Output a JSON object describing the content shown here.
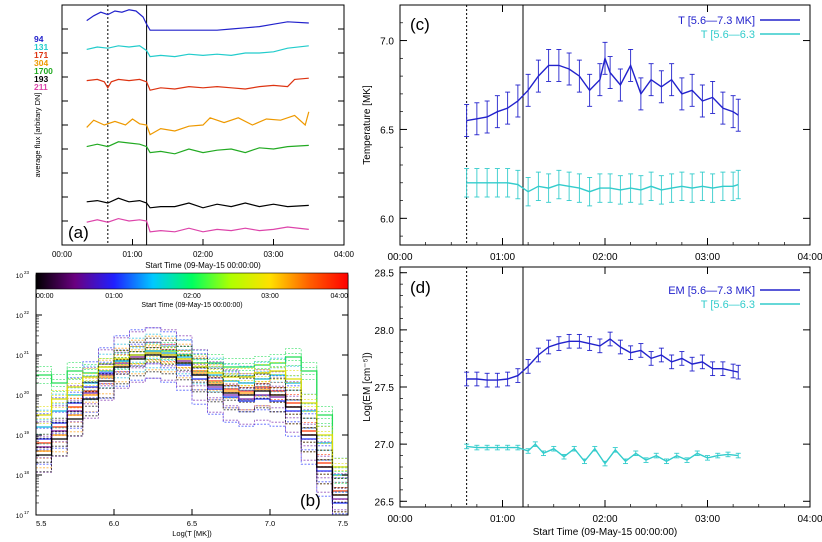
{
  "chart_data": [
    {
      "id": "a",
      "type": "line",
      "panel_label": "(a)",
      "xlabel": "Start Time (09-May-15 00:00:00)",
      "ylabel": "average flux [arbitary DN]",
      "xticks": [
        "00:00",
        "01:00",
        "02:00",
        "03:00",
        "04:00"
      ],
      "xlim": [
        0,
        4
      ],
      "ylim": [
        0,
        10
      ],
      "vlines": [
        {
          "x": 0.65,
          "style": "dotted"
        },
        {
          "x": 1.2,
          "style": "solid"
        }
      ],
      "legend": [
        {
          "label": "94",
          "color": "#2222cc"
        },
        {
          "label": "131",
          "color": "#22cccc"
        },
        {
          "label": "171",
          "color": "#dd3311"
        },
        {
          "label": "304",
          "color": "#ee9900"
        },
        {
          "label": "1700",
          "color": "#22aa22"
        },
        {
          "label": "193",
          "color": "#000000"
        },
        {
          "label": "211",
          "color": "#dd44aa"
        }
      ],
      "series": [
        {
          "name": "94",
          "color": "#2222cc",
          "x": [
            0.35,
            0.45,
            0.55,
            0.65,
            0.75,
            0.85,
            0.95,
            1.05,
            1.15,
            1.2,
            1.25,
            1.4,
            1.6,
            1.8,
            2.0,
            2.2,
            2.4,
            2.6,
            2.8,
            3.0,
            3.2,
            3.5
          ],
          "values": [
            9.35,
            9.55,
            9.7,
            9.6,
            9.75,
            9.7,
            9.8,
            9.75,
            9.5,
            9.2,
            8.95,
            8.95,
            8.95,
            8.95,
            8.95,
            8.95,
            9.0,
            9.05,
            9.1,
            9.2,
            9.3,
            9.25
          ]
        },
        {
          "name": "131",
          "color": "#22cccc",
          "x": [
            0.35,
            0.5,
            0.65,
            0.8,
            0.95,
            1.1,
            1.2,
            1.25,
            1.4,
            1.6,
            1.8,
            2.0,
            2.2,
            2.4,
            2.6,
            2.8,
            3.0,
            3.2,
            3.5
          ],
          "values": [
            8.15,
            8.25,
            8.2,
            8.3,
            8.25,
            8.3,
            8.1,
            7.85,
            7.9,
            7.85,
            7.95,
            7.9,
            7.95,
            7.9,
            8.0,
            8.0,
            8.05,
            8.2,
            8.3
          ]
        },
        {
          "name": "171",
          "color": "#dd3311",
          "x": [
            0.35,
            0.5,
            0.6,
            0.65,
            0.7,
            0.8,
            0.95,
            1.1,
            1.2,
            1.25,
            1.4,
            1.6,
            1.8,
            2.0,
            2.2,
            2.4,
            2.6,
            2.8,
            3.0,
            3.2,
            3.3,
            3.5
          ],
          "values": [
            6.85,
            6.9,
            6.8,
            6.55,
            6.8,
            6.9,
            6.85,
            6.9,
            6.8,
            6.45,
            6.55,
            6.5,
            6.6,
            6.55,
            6.6,
            6.55,
            6.5,
            6.6,
            6.65,
            6.6,
            6.9,
            6.95
          ]
        },
        {
          "name": "304",
          "color": "#ee9900",
          "x": [
            0.35,
            0.45,
            0.6,
            0.75,
            0.9,
            1.0,
            1.1,
            1.2,
            1.25,
            1.4,
            1.6,
            1.8,
            2.0,
            2.1,
            2.3,
            2.5,
            2.7,
            2.9,
            3.1,
            3.3,
            3.45,
            3.5
          ],
          "values": [
            4.9,
            5.2,
            5.0,
            5.15,
            5.0,
            5.25,
            5.05,
            5.0,
            4.6,
            4.85,
            4.75,
            4.95,
            5.0,
            5.3,
            5.1,
            5.3,
            5.0,
            5.25,
            5.2,
            5.4,
            5.0,
            5.55
          ]
        },
        {
          "name": "1700",
          "color": "#22aa22",
          "x": [
            0.35,
            0.5,
            0.65,
            0.8,
            0.95,
            1.1,
            1.2,
            1.25,
            1.4,
            1.6,
            1.8,
            2.0,
            2.2,
            2.4,
            2.6,
            2.8,
            3.0,
            3.2,
            3.5
          ],
          "values": [
            4.1,
            4.2,
            4.1,
            4.3,
            4.25,
            4.2,
            4.1,
            3.85,
            3.9,
            3.8,
            4.0,
            3.85,
            3.95,
            4.0,
            3.85,
            4.05,
            4.0,
            4.1,
            4.15
          ]
        },
        {
          "name": "193",
          "color": "#000000",
          "x": [
            0.35,
            0.5,
            0.65,
            0.8,
            0.95,
            1.1,
            1.2,
            1.25,
            1.4,
            1.6,
            1.8,
            2.0,
            2.2,
            2.4,
            2.6,
            2.8,
            3.0,
            3.2,
            3.5
          ],
          "values": [
            1.8,
            1.85,
            1.75,
            1.95,
            1.8,
            1.85,
            1.75,
            1.55,
            1.6,
            1.6,
            1.75,
            1.55,
            1.7,
            1.6,
            1.75,
            1.6,
            1.7,
            1.6,
            1.65
          ]
        },
        {
          "name": "211",
          "color": "#dd44aa",
          "x": [
            0.35,
            0.5,
            0.65,
            0.8,
            0.95,
            1.1,
            1.2,
            1.25,
            1.4,
            1.6,
            1.8,
            2.0,
            2.2,
            2.4,
            2.6,
            2.8,
            3.0,
            3.2,
            3.5
          ],
          "values": [
            0.95,
            1.05,
            0.95,
            1.1,
            1.0,
            1.05,
            1.0,
            0.55,
            0.6,
            0.55,
            0.7,
            0.55,
            0.65,
            0.6,
            0.7,
            0.6,
            0.65,
            0.75,
            0.65
          ]
        }
      ]
    },
    {
      "id": "b",
      "type": "line",
      "panel_label": "(b)",
      "xlabel": "Log(T [MK])",
      "xticks": [
        "5.5",
        "6.0",
        "6.5",
        "7.0",
        "7.5"
      ],
      "xlim": [
        5.5,
        7.5
      ],
      "ylim_exp": [
        17,
        23
      ],
      "ytick_labels": [
        "10",
        "10",
        "10",
        "10",
        "10",
        "10",
        "10"
      ],
      "ytick_exponents": [
        "17",
        "18",
        "19",
        "20",
        "21",
        "22",
        "23"
      ],
      "colorbar": {
        "ticks": [
          "00:00",
          "01:00",
          "02:00",
          "03:00",
          "04:00"
        ],
        "label": "Start Time (09-May-15 00:00:00)",
        "colors": [
          "#000000",
          "#6a0080",
          "#2020ff",
          "#00c8ff",
          "#00ff60",
          "#b0ff00",
          "#ffe000",
          "#ff6000",
          "#ff0000"
        ]
      },
      "bins": [
        5.55,
        5.65,
        5.75,
        5.85,
        5.95,
        6.05,
        6.15,
        6.25,
        6.35,
        6.45,
        6.55,
        6.65,
        6.75,
        6.85,
        6.95,
        7.05,
        7.15,
        7.25,
        7.35,
        7.45
      ],
      "series": [
        {
          "name": "red curve",
          "color": "#ff3300",
          "values": [
            18.8,
            19.2,
            19.7,
            20.1,
            20.5,
            20.8,
            21.0,
            21.1,
            21.05,
            20.9,
            20.6,
            20.35,
            20.15,
            20.1,
            20.2,
            20.1,
            19.8,
            19.1,
            18.3,
            17.6
          ]
        },
        {
          "name": "orange curve",
          "color": "#ff9900",
          "values": [
            18.6,
            19.0,
            19.5,
            20.0,
            20.45,
            20.75,
            20.95,
            21.05,
            21.0,
            20.85,
            20.55,
            20.3,
            20.1,
            20.05,
            20.15,
            20.0,
            19.7,
            19.0,
            18.2,
            17.5
          ]
        },
        {
          "name": "blue curve",
          "color": "#2233ff",
          "values": [
            18.9,
            19.3,
            19.8,
            20.2,
            20.55,
            20.85,
            21.0,
            21.05,
            20.95,
            20.75,
            20.4,
            20.15,
            19.95,
            19.85,
            19.9,
            19.85,
            19.6,
            18.9,
            18.1,
            17.3
          ]
        },
        {
          "name": "green curve",
          "color": "#22dd55",
          "values": [
            20.5,
            20.3,
            20.6,
            20.55,
            20.7,
            20.85,
            21.0,
            21.1,
            21.1,
            21.0,
            20.8,
            20.8,
            20.7,
            20.7,
            20.75,
            20.8,
            20.95,
            20.6,
            19.5,
            18.0
          ]
        },
        {
          "name": "cyan curve",
          "color": "#11bbdd",
          "values": [
            19.2,
            19.6,
            20.0,
            20.3,
            20.6,
            20.85,
            21.0,
            21.1,
            21.05,
            20.95,
            20.7,
            20.5,
            20.35,
            20.3,
            20.4,
            20.5,
            20.3,
            19.6,
            18.8,
            18.0
          ]
        },
        {
          "name": "purple curve",
          "color": "#7722aa",
          "values": [
            18.7,
            19.1,
            19.6,
            20.05,
            20.5,
            20.8,
            20.95,
            21.05,
            21.0,
            20.85,
            20.5,
            20.2,
            20.0,
            19.9,
            20.0,
            19.95,
            19.7,
            19.0,
            18.2,
            17.4
          ]
        },
        {
          "name": "yellow curve",
          "color": "#dddd00",
          "values": [
            19.5,
            19.9,
            20.2,
            20.45,
            20.7,
            20.9,
            21.0,
            21.05,
            21.0,
            20.9,
            20.7,
            20.55,
            20.45,
            20.45,
            20.55,
            20.6,
            20.4,
            19.8,
            19.0,
            18.2
          ]
        },
        {
          "name": "black curve",
          "color": "#000000",
          "values": [
            18.5,
            18.9,
            19.4,
            19.9,
            20.35,
            20.7,
            20.9,
            21.0,
            20.95,
            20.8,
            20.5,
            20.25,
            20.05,
            20.0,
            20.1,
            20.0,
            19.7,
            19.0,
            18.2,
            17.5
          ]
        }
      ]
    },
    {
      "id": "c",
      "type": "line",
      "panel_label": "(c)",
      "xlabel": "",
      "ylabel": "Temperature [MK]",
      "xticks": [
        "00:00",
        "01:00",
        "02:00",
        "03:00",
        "04:00"
      ],
      "yticks": [
        "6.0",
        "6.5",
        "7.0"
      ],
      "xlim": [
        0,
        4
      ],
      "ylim": [
        5.85,
        7.2
      ],
      "vlines": [
        {
          "x": 0.65,
          "style": "dotted"
        },
        {
          "x": 1.2,
          "style": "solid"
        }
      ],
      "legend": [
        {
          "label": "T [5.6—7.3 MK]",
          "color": "#2222cc"
        },
        {
          "label": "T [5.6—6.3",
          "color": "#33cccc"
        }
      ],
      "series": [
        {
          "name": "T [5.6—7.3 MK]",
          "color": "#2222cc",
          "error": 0.09,
          "x": [
            0.65,
            0.75,
            0.85,
            0.95,
            1.05,
            1.15,
            1.25,
            1.35,
            1.45,
            1.55,
            1.65,
            1.75,
            1.85,
            1.95,
            2.0,
            2.05,
            2.15,
            2.25,
            2.35,
            2.45,
            2.55,
            2.65,
            2.75,
            2.85,
            2.95,
            3.05,
            3.15,
            3.25,
            3.3
          ],
          "values": [
            6.55,
            6.56,
            6.57,
            6.6,
            6.62,
            6.66,
            6.72,
            6.8,
            6.86,
            6.86,
            6.84,
            6.8,
            6.72,
            6.78,
            6.9,
            6.82,
            6.75,
            6.86,
            6.7,
            6.78,
            6.74,
            6.78,
            6.7,
            6.72,
            6.66,
            6.68,
            6.62,
            6.6,
            6.58
          ]
        },
        {
          "name": "T [5.6—6.3",
          "color": "#33cccc",
          "error": 0.08,
          "x": [
            0.65,
            0.75,
            0.85,
            0.95,
            1.05,
            1.15,
            1.25,
            1.35,
            1.45,
            1.55,
            1.65,
            1.75,
            1.85,
            1.95,
            2.05,
            2.15,
            2.25,
            2.35,
            2.45,
            2.55,
            2.65,
            2.75,
            2.85,
            2.95,
            3.05,
            3.15,
            3.25,
            3.3
          ],
          "values": [
            6.2,
            6.2,
            6.2,
            6.2,
            6.2,
            6.19,
            6.15,
            6.18,
            6.17,
            6.19,
            6.18,
            6.17,
            6.15,
            6.17,
            6.17,
            6.16,
            6.17,
            6.16,
            6.18,
            6.16,
            6.17,
            6.18,
            6.17,
            6.18,
            6.17,
            6.18,
            6.18,
            6.19
          ]
        }
      ]
    },
    {
      "id": "d",
      "type": "line",
      "panel_label": "(d)",
      "xlabel": "Start Time (09-May-15 00:00:00)",
      "ylabel": "Log(EM [cm⁻⁵])",
      "xticks": [
        "00:00",
        "01:00",
        "02:00",
        "03:00",
        "04:00"
      ],
      "yticks": [
        "26.5",
        "27.0",
        "27.5",
        "28.0",
        "28.5"
      ],
      "xlim": [
        0,
        4
      ],
      "ylim": [
        26.45,
        28.55
      ],
      "vlines": [
        {
          "x": 0.65,
          "style": "dotted"
        },
        {
          "x": 1.2,
          "style": "solid"
        }
      ],
      "legend": [
        {
          "label": "EM [5.6—7.3 MK]",
          "color": "#2222cc"
        },
        {
          "label": "T [5.6—6.3",
          "color": "#33cccc"
        }
      ],
      "series": [
        {
          "name": "EM [5.6—7.3 MK]",
          "color": "#2222cc",
          "error": 0.06,
          "x": [
            0.65,
            0.75,
            0.85,
            0.95,
            1.05,
            1.15,
            1.25,
            1.35,
            1.45,
            1.55,
            1.65,
            1.75,
            1.85,
            1.95,
            2.05,
            2.15,
            2.25,
            2.35,
            2.45,
            2.55,
            2.65,
            2.75,
            2.85,
            2.95,
            3.05,
            3.15,
            3.25,
            3.3
          ],
          "values": [
            27.57,
            27.57,
            27.56,
            27.56,
            27.57,
            27.6,
            27.68,
            27.78,
            27.85,
            27.88,
            27.9,
            27.9,
            27.88,
            27.86,
            27.92,
            27.85,
            27.8,
            27.82,
            27.75,
            27.78,
            27.72,
            27.75,
            27.7,
            27.72,
            27.66,
            27.66,
            27.64,
            27.63
          ]
        },
        {
          "name": "T [5.6—6.3",
          "color": "#33cccc",
          "error": 0.02,
          "x": [
            0.65,
            0.75,
            0.85,
            0.95,
            1.05,
            1.15,
            1.25,
            1.32,
            1.4,
            1.5,
            1.6,
            1.7,
            1.8,
            1.9,
            2.0,
            2.1,
            2.2,
            2.3,
            2.4,
            2.5,
            2.6,
            2.7,
            2.8,
            2.9,
            3.0,
            3.1,
            3.2,
            3.3
          ],
          "values": [
            26.98,
            26.97,
            26.97,
            26.97,
            26.97,
            26.97,
            26.94,
            27.0,
            26.92,
            26.96,
            26.89,
            26.96,
            26.85,
            26.96,
            26.83,
            26.95,
            26.85,
            26.92,
            26.86,
            26.9,
            26.85,
            26.9,
            26.86,
            26.92,
            26.88,
            26.9,
            26.91,
            26.9
          ]
        }
      ]
    }
  ]
}
